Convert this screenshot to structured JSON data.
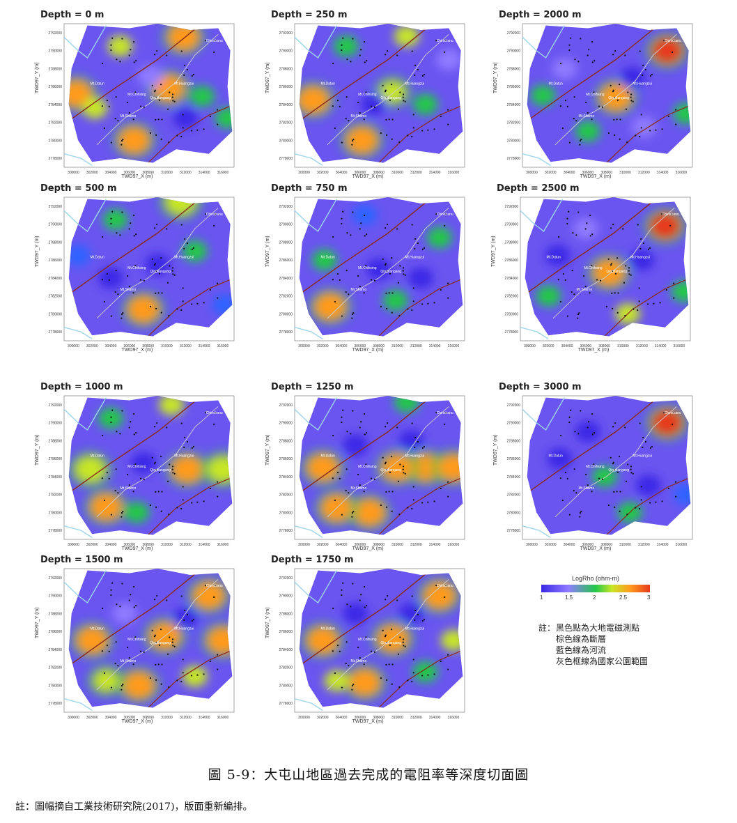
{
  "figure": {
    "caption": "圖 5-9：大屯山地區過去完成的電阻率等深度切面圖",
    "source_note": "註：圖幅摘自工業技術研究院(2017)，版面重新編排。"
  },
  "axes": {
    "xlabel": "TWD97_X (m)",
    "ylabel": "TWD97_Y (m)",
    "xticks": [
      "300000",
      "302000",
      "304000",
      "306000",
      "308000",
      "310000",
      "312000",
      "314000",
      "316000"
    ],
    "yticks": [
      "2792000",
      "2790000",
      "2788000",
      "2786000",
      "2784000",
      "2782000",
      "2780000",
      "2778000"
    ]
  },
  "map_labels": [
    "Chinshanu",
    "Mt.Datun",
    "Mt.Chihsing",
    "Qingtiangang",
    "Mt.Huangzui",
    "Mt.Shamo"
  ],
  "legend": {
    "title": "LogRho (ohm-m)",
    "ticks": [
      "1",
      "1.5",
      "2",
      "2.5",
      "3"
    ],
    "colors": [
      "#3a28e6",
      "#8f7bff",
      "#22c84a",
      "#c8e627",
      "#ff9a1e",
      "#e63a1a"
    ]
  },
  "notes": {
    "label": "註：",
    "lines": [
      "黑色點為大地電磁測點",
      "棕色線為斷層",
      "藍色線為河流",
      "灰色框線為國家公園範圍"
    ]
  },
  "chart_data": [
    {
      "type": "heatmap",
      "title": "Depth = 0 m",
      "anomalies": [
        {
          "x": 300300,
          "y": 2785200,
          "v": 2.9
        },
        {
          "x": 306500,
          "y": 2780000,
          "v": 2.8
        },
        {
          "x": 311800,
          "y": 2791500,
          "v": 2.6
        },
        {
          "x": 310200,
          "y": 2785800,
          "v": 2.7
        },
        {
          "x": 305000,
          "y": 2790500,
          "v": 2.3
        },
        {
          "x": 316500,
          "y": 2782500,
          "v": 2.2
        },
        {
          "x": 302300,
          "y": 2783600,
          "v": 2.3
        },
        {
          "x": 313800,
          "y": 2784900,
          "v": 2.2
        },
        {
          "x": 308200,
          "y": 2787200,
          "v": 1.4
        },
        {
          "x": 312000,
          "y": 2782500,
          "v": 1.3
        }
      ]
    },
    {
      "type": "heatmap",
      "title": "Depth = 250 m",
      "anomalies": [
        {
          "x": 306200,
          "y": 2780000,
          "v": 2.8
        },
        {
          "x": 301000,
          "y": 2784500,
          "v": 2.6
        },
        {
          "x": 309500,
          "y": 2785400,
          "v": 2.4
        },
        {
          "x": 313000,
          "y": 2784000,
          "v": 2.2
        },
        {
          "x": 311000,
          "y": 2791600,
          "v": 2.3
        },
        {
          "x": 304500,
          "y": 2790500,
          "v": 2.2
        },
        {
          "x": 315500,
          "y": 2789000,
          "v": 1.4
        },
        {
          "x": 307500,
          "y": 2784000,
          "v": 1.3
        }
      ]
    },
    {
      "type": "heatmap",
      "title": "Depth = 2000 m",
      "anomalies": [
        {
          "x": 314500,
          "y": 2790000,
          "v": 3.0
        },
        {
          "x": 309000,
          "y": 2784800,
          "v": 2.9
        },
        {
          "x": 301200,
          "y": 2785000,
          "v": 2.0
        },
        {
          "x": 310800,
          "y": 2787000,
          "v": 1.3
        },
        {
          "x": 303500,
          "y": 2788000,
          "v": 1.5
        },
        {
          "x": 312000,
          "y": 2781500,
          "v": 1.4
        },
        {
          "x": 306000,
          "y": 2781000,
          "v": 2.1
        },
        {
          "x": 316500,
          "y": 2783000,
          "v": 2.0
        }
      ]
    },
    {
      "type": "heatmap",
      "title": "Depth = 500 m",
      "anomalies": [
        {
          "x": 307500,
          "y": 2780500,
          "v": 2.9
        },
        {
          "x": 311500,
          "y": 2792500,
          "v": 2.5
        },
        {
          "x": 300500,
          "y": 2786500,
          "v": 1.9
        },
        {
          "x": 313000,
          "y": 2787000,
          "v": 2.0
        },
        {
          "x": 304500,
          "y": 2790500,
          "v": 2.0
        },
        {
          "x": 309000,
          "y": 2785500,
          "v": 1.1
        },
        {
          "x": 304000,
          "y": 2784000,
          "v": 1.1
        },
        {
          "x": 316200,
          "y": 2781000,
          "v": 1.9
        }
      ]
    },
    {
      "type": "heatmap",
      "title": "Depth = 750 m",
      "anomalies": [
        {
          "x": 302800,
          "y": 2780800,
          "v": 2.9
        },
        {
          "x": 309800,
          "y": 2781500,
          "v": 2.2
        },
        {
          "x": 314500,
          "y": 2788500,
          "v": 2.1
        },
        {
          "x": 302200,
          "y": 2786000,
          "v": 2.0
        },
        {
          "x": 306500,
          "y": 2791000,
          "v": 1.9
        },
        {
          "x": 308000,
          "y": 2785000,
          "v": 1.1
        },
        {
          "x": 312500,
          "y": 2784000,
          "v": 1.2
        }
      ]
    },
    {
      "type": "heatmap",
      "title": "Depth = 2500 m",
      "anomalies": [
        {
          "x": 314500,
          "y": 2789800,
          "v": 3.0
        },
        {
          "x": 308500,
          "y": 2784600,
          "v": 2.6
        },
        {
          "x": 310500,
          "y": 2780000,
          "v": 2.3
        },
        {
          "x": 303000,
          "y": 2786500,
          "v": 1.2
        },
        {
          "x": 312000,
          "y": 2786000,
          "v": 1.3
        },
        {
          "x": 306000,
          "y": 2789500,
          "v": 1.4
        },
        {
          "x": 302000,
          "y": 2782000,
          "v": 2.0
        },
        {
          "x": 316500,
          "y": 2782500,
          "v": 2.0
        }
      ]
    },
    {
      "type": "heatmap",
      "title": "Depth = 1000 m",
      "anomalies": [
        {
          "x": 303500,
          "y": 2780600,
          "v": 2.9
        },
        {
          "x": 301800,
          "y": 2784800,
          "v": 2.5
        },
        {
          "x": 312200,
          "y": 2784800,
          "v": 2.6
        },
        {
          "x": 316000,
          "y": 2784800,
          "v": 2.5
        },
        {
          "x": 306800,
          "y": 2780000,
          "v": 2.2
        },
        {
          "x": 310500,
          "y": 2792000,
          "v": 2.3
        },
        {
          "x": 304000,
          "y": 2790500,
          "v": 2.1
        },
        {
          "x": 307500,
          "y": 2785500,
          "v": 1.1
        }
      ]
    },
    {
      "type": "heatmap",
      "title": "Depth = 1250 m",
      "anomalies": [
        {
          "x": 313000,
          "y": 2785000,
          "v": 2.9
        },
        {
          "x": 316000,
          "y": 2785000,
          "v": 2.9
        },
        {
          "x": 310000,
          "y": 2785000,
          "v": 2.7
        },
        {
          "x": 307000,
          "y": 2780000,
          "v": 2.6
        },
        {
          "x": 302000,
          "y": 2785000,
          "v": 2.6
        },
        {
          "x": 303500,
          "y": 2780500,
          "v": 2.7
        },
        {
          "x": 311000,
          "y": 2792300,
          "v": 2.2
        },
        {
          "x": 305500,
          "y": 2787500,
          "v": 1.3
        },
        {
          "x": 311500,
          "y": 2788000,
          "v": 1.2
        }
      ]
    },
    {
      "type": "heatmap",
      "title": "Depth = 3000 m",
      "anomalies": [
        {
          "x": 314500,
          "y": 2790000,
          "v": 3.0
        },
        {
          "x": 307800,
          "y": 2784000,
          "v": 2.2
        },
        {
          "x": 310500,
          "y": 2780000,
          "v": 2.2
        },
        {
          "x": 303000,
          "y": 2786000,
          "v": 1.2
        },
        {
          "x": 312500,
          "y": 2783000,
          "v": 1.3
        },
        {
          "x": 306000,
          "y": 2789000,
          "v": 1.3
        },
        {
          "x": 316500,
          "y": 2782000,
          "v": 1.9
        }
      ]
    },
    {
      "type": "heatmap",
      "title": "Depth = 1500 m",
      "anomalies": [
        {
          "x": 309800,
          "y": 2785500,
          "v": 2.9
        },
        {
          "x": 302000,
          "y": 2785000,
          "v": 2.8
        },
        {
          "x": 316000,
          "y": 2785000,
          "v": 2.8
        },
        {
          "x": 307000,
          "y": 2780000,
          "v": 2.8
        },
        {
          "x": 314500,
          "y": 2790000,
          "v": 2.6
        },
        {
          "x": 313000,
          "y": 2781000,
          "v": 2.3
        },
        {
          "x": 303500,
          "y": 2780500,
          "v": 2.4
        },
        {
          "x": 305500,
          "y": 2788000,
          "v": 1.4
        },
        {
          "x": 312000,
          "y": 2787500,
          "v": 1.3
        }
      ]
    },
    {
      "type": "heatmap",
      "title": "Depth = 1750 m",
      "anomalies": [
        {
          "x": 314500,
          "y": 2790000,
          "v": 2.9
        },
        {
          "x": 309500,
          "y": 2785200,
          "v": 2.9
        },
        {
          "x": 302000,
          "y": 2785000,
          "v": 2.6
        },
        {
          "x": 306500,
          "y": 2780300,
          "v": 2.6
        },
        {
          "x": 313000,
          "y": 2781500,
          "v": 2.1
        },
        {
          "x": 303500,
          "y": 2780500,
          "v": 2.3
        },
        {
          "x": 305500,
          "y": 2788000,
          "v": 1.3
        },
        {
          "x": 311500,
          "y": 2788000,
          "v": 1.3
        },
        {
          "x": 316000,
          "y": 2785000,
          "v": 2.3
        }
      ]
    }
  ]
}
